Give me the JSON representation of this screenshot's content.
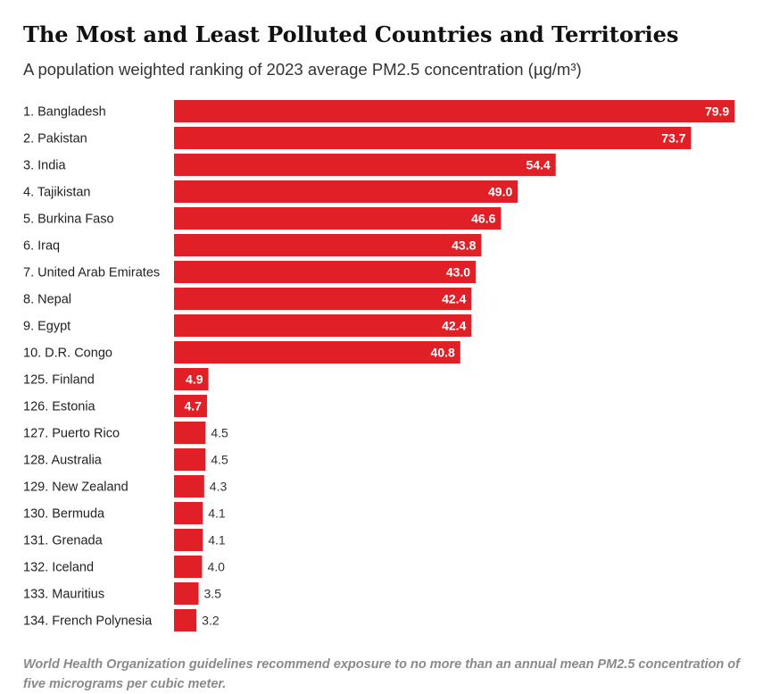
{
  "chart_data": {
    "type": "bar",
    "orientation": "horizontal",
    "title": "The Most and Least Polluted Countries and Territories",
    "subtitle": "A population weighted ranking of 2023 average PM2.5 concentration (µg/m³)",
    "categories": [
      "1. Bangladesh",
      "2. Pakistan",
      "3. India",
      "4. Tajikistan",
      "5. Burkina Faso",
      "6. Iraq",
      "7. United Arab Emirates",
      "8. Nepal",
      "9. Egypt",
      "10. D.R. Congo",
      "125. Finland",
      "126. Estonia",
      "127. Puerto Rico",
      "128. Australia",
      "129. New Zealand",
      "130. Bermuda",
      "131. Grenada",
      "132. Iceland",
      "133. Mauritius",
      "134. French Polynesia"
    ],
    "values": [
      79.9,
      73.7,
      54.4,
      49.0,
      46.6,
      43.8,
      43.0,
      42.4,
      42.4,
      40.8,
      4.9,
      4.7,
      4.5,
      4.5,
      4.3,
      4.1,
      4.1,
      4.0,
      3.5,
      3.2
    ],
    "value_labels": [
      "79.9",
      "73.7",
      "54.4",
      "49.0",
      "46.6",
      "43.8",
      "43.0",
      "42.4",
      "42.4",
      "40.8",
      "4.9",
      "4.7",
      "4.5",
      "4.5",
      "4.3",
      "4.1",
      "4.1",
      "4.0",
      "3.5",
      "3.2"
    ],
    "xlim": [
      0,
      80
    ],
    "grid": false,
    "bar_color": "#e01f26",
    "footnote": "World Health Organization guidelines recommend exposure to no more than an annual mean PM2.5 concentration of five micrograms per cubic meter."
  }
}
